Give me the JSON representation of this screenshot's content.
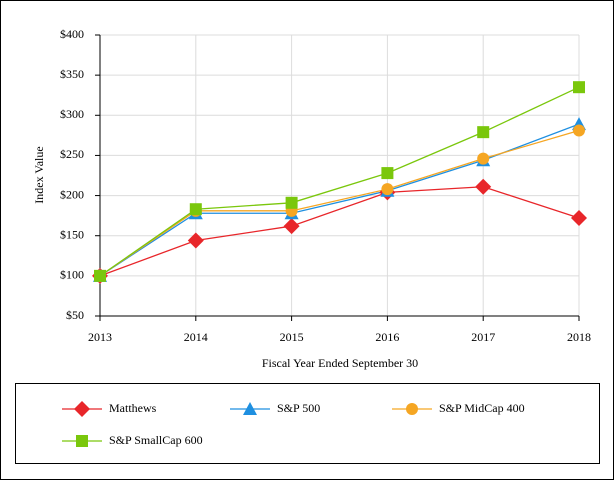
{
  "chart_data": {
    "type": "line",
    "y_label": "Index Value",
    "x_label": "Fiscal Year Ended September 30",
    "x": [
      2013,
      2014,
      2015,
      2016,
      2017,
      2018
    ],
    "xlim": [
      2013,
      2018
    ],
    "xticks": [
      2013,
      2014,
      2015,
      2016,
      2017,
      2018
    ],
    "ylim": [
      50,
      400
    ],
    "yticks": [
      {
        "value": 50,
        "label": "$50"
      },
      {
        "value": 100,
        "label": "$100"
      },
      {
        "value": 150,
        "label": "$150"
      },
      {
        "value": 200,
        "label": "$200"
      },
      {
        "value": 250,
        "label": "$250"
      },
      {
        "value": 300,
        "label": "$300"
      },
      {
        "value": 350,
        "label": "$350"
      },
      {
        "value": 400,
        "label": "$400"
      }
    ],
    "grid": true,
    "legend": "bottom",
    "series": [
      {
        "name": "Matthews",
        "color": "#e8262a",
        "marker": "diamond",
        "values": [
          100,
          144,
          162,
          204,
          211,
          172
        ]
      },
      {
        "name": "S&P 500",
        "color": "#1e8fe0",
        "marker": "triangle",
        "values": [
          100,
          178,
          178,
          206,
          244,
          289
        ]
      },
      {
        "name": "S&P MidCap 400",
        "color": "#f5a623",
        "marker": "circle",
        "values": [
          100,
          181,
          181,
          208,
          246,
          281
        ]
      },
      {
        "name": "S&P SmallCap 600",
        "color": "#7ac70c",
        "marker": "square",
        "values": [
          100,
          183,
          191,
          228,
          279,
          335
        ]
      }
    ]
  }
}
